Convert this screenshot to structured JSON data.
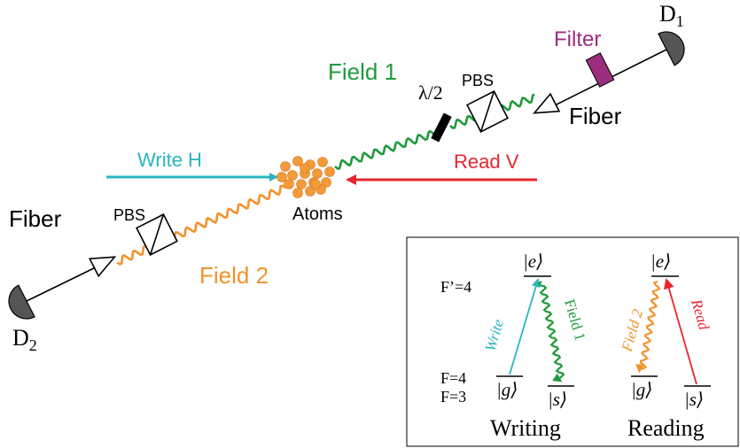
{
  "colors": {
    "write": "#2ab5c0",
    "read": "#e8252e",
    "field1": "#1f9a3c",
    "field2": "#f2922c",
    "filter": "#9b2d7f",
    "atom": "#f39a3a",
    "black": "#000000"
  },
  "labels": {
    "write_h": "Write H",
    "read_v": "Read V",
    "field1": "Field 1",
    "field2": "Field 2",
    "atoms": "Atoms",
    "fiber_left": "Fiber",
    "fiber_right": "Fiber",
    "filter": "Filter",
    "pbs_top": "PBS",
    "pbs_bottom": "PBS",
    "half_wave": "λ/2",
    "detector1_main": "D",
    "detector1_sub": "1",
    "detector2_main": "D",
    "detector2_sub": "2"
  },
  "inset": {
    "f_prime": "F’=4",
    "f4": "F=4",
    "f3": "F=3",
    "ket_e_writing": "|e⟩",
    "ket_g_writing": "|g⟩",
    "ket_s_writing": "|s⟩",
    "ket_e_reading": "|e⟩",
    "ket_g_reading": "|g⟩",
    "ket_s_reading": "|s⟩",
    "write_arrow": "Write",
    "field1_arrow": "Field 1",
    "field2_arrow": "Field 2",
    "read_arrow": "Read",
    "writing": "Writing",
    "reading": "Reading"
  },
  "icons": {
    "detector": "detector-icon",
    "fiber_coupler": "fiber-coupler-icon",
    "beam_splitter": "polarizing-beam-splitter-icon",
    "waveplate": "half-wave-plate-icon",
    "filter": "filter-icon",
    "atom": "atom-icon"
  }
}
